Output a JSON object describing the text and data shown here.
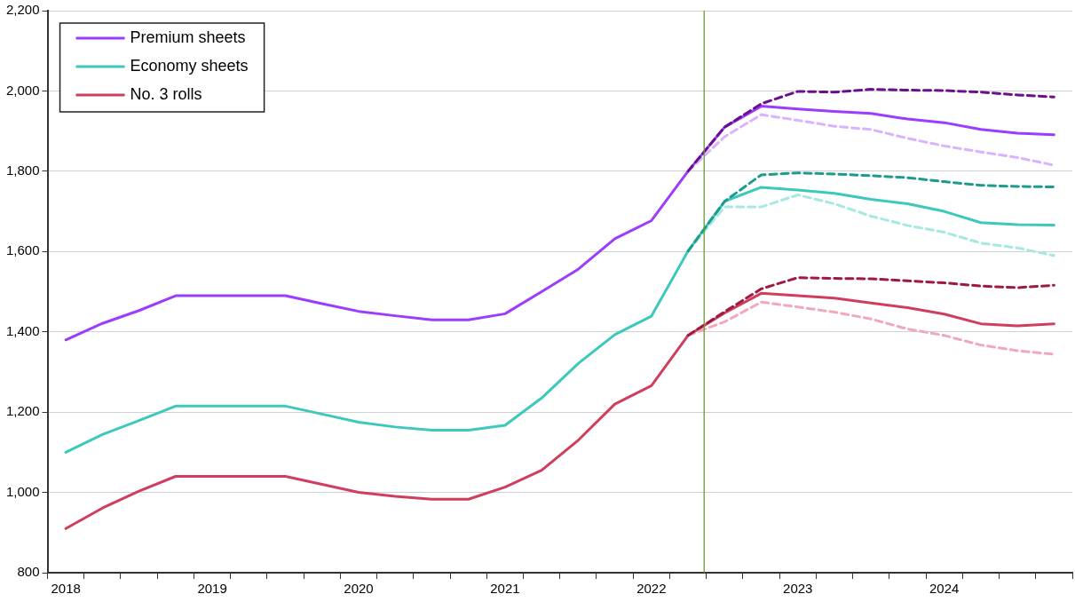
{
  "chart_data": {
    "type": "line",
    "x": [
      2018,
      2018.25,
      2018.5,
      2018.75,
      2019,
      2019.25,
      2019.5,
      2019.75,
      2020,
      2020.25,
      2020.5,
      2020.75,
      2021,
      2021.25,
      2021.5,
      2021.75,
      2022,
      2022.25,
      2022.5,
      2022.75,
      2023,
      2023.25,
      2023.5,
      2023.75,
      2024,
      2024.25,
      2024.5,
      2024.75
    ],
    "series": [
      {
        "name": "Premium sheets",
        "color": "#9b3cff",
        "line_style": "solid",
        "values": [
          1380,
          1421,
          1453,
          1490,
          1490,
          1490,
          1490,
          1470,
          1451,
          1440,
          1430,
          1430,
          1445,
          1500,
          1556,
          1632,
          1677,
          1800,
          1910,
          1962,
          1955,
          1949,
          1944,
          1930,
          1921,
          1904,
          1895,
          1891
        ]
      },
      {
        "name": "Economy sheets",
        "color": "#3cc9bc",
        "line_style": "solid",
        "values": [
          1100,
          1144,
          1179,
          1215,
          1215,
          1215,
          1215,
          1195,
          1175,
          1163,
          1155,
          1155,
          1167,
          1235,
          1321,
          1393,
          1439,
          1601,
          1725,
          1760,
          1753,
          1745,
          1730,
          1719,
          1700,
          1672,
          1667,
          1666
        ]
      },
      {
        "name": "No. 3 rolls",
        "color": "#d03e5e",
        "line_style": "solid",
        "values": [
          910,
          961,
          1003,
          1040,
          1040,
          1040,
          1040,
          1020,
          1000,
          990,
          983,
          983,
          1013,
          1055,
          1130,
          1220,
          1266,
          1391,
          1447,
          1496,
          1490,
          1484,
          1472,
          1460,
          1444,
          1420,
          1415,
          1420
        ]
      },
      {
        "color": "#6a0f8e",
        "line_style": "dashed",
        "values": [
          null,
          null,
          null,
          null,
          null,
          null,
          null,
          null,
          null,
          null,
          null,
          null,
          null,
          null,
          null,
          null,
          null,
          1800,
          1910,
          1968,
          1999,
          1997,
          2004,
          2002,
          2001,
          1997,
          1990,
          1985
        ]
      },
      {
        "color": "#d9b3ff",
        "line_style": "dashed",
        "values": [
          null,
          null,
          null,
          null,
          null,
          null,
          null,
          null,
          null,
          null,
          null,
          null,
          null,
          null,
          null,
          null,
          null,
          1800,
          1886,
          1941,
          1927,
          1912,
          1904,
          1882,
          1863,
          1848,
          1834,
          1815
        ]
      },
      {
        "color": "#1f9a8e",
        "line_style": "dashed",
        "values": [
          null,
          null,
          null,
          null,
          null,
          null,
          null,
          null,
          null,
          null,
          null,
          null,
          null,
          null,
          null,
          null,
          null,
          1601,
          1725,
          1791,
          1796,
          1793,
          1789,
          1784,
          1774,
          1765,
          1762,
          1761
        ]
      },
      {
        "color": "#a6e8e2",
        "line_style": "dashed",
        "values": [
          null,
          null,
          null,
          null,
          null,
          null,
          null,
          null,
          null,
          null,
          null,
          null,
          null,
          null,
          null,
          null,
          null,
          1601,
          1711,
          1711,
          1741,
          1719,
          1688,
          1665,
          1648,
          1621,
          1609,
          1590
        ]
      },
      {
        "color": "#a0193e",
        "line_style": "dashed",
        "values": [
          null,
          null,
          null,
          null,
          null,
          null,
          null,
          null,
          null,
          null,
          null,
          null,
          null,
          null,
          null,
          null,
          null,
          1391,
          1450,
          1507,
          1535,
          1533,
          1532,
          1527,
          1522,
          1514,
          1510,
          1516
        ]
      },
      {
        "color": "#f0a8bc",
        "line_style": "dashed",
        "values": [
          null,
          null,
          null,
          null,
          null,
          null,
          null,
          null,
          null,
          null,
          null,
          null,
          null,
          null,
          null,
          null,
          null,
          1391,
          1425,
          1474,
          1462,
          1449,
          1432,
          1407,
          1391,
          1367,
          1353,
          1344
        ]
      }
    ],
    "xlim": [
      2017.875,
      2024.875
    ],
    "xticks": [
      {
        "value": 2017.875,
        "label": null
      },
      2018,
      {
        "value": 2018.125,
        "label": null
      },
      {
        "value": 2018.375,
        "label": null
      },
      {
        "value": 2018.625,
        "label": null
      },
      {
        "value": 2018.875,
        "label": null
      },
      2019,
      {
        "value": 2019.125,
        "label": null
      },
      {
        "value": 2019.375,
        "label": null
      },
      {
        "value": 2019.625,
        "label": null
      },
      {
        "value": 2019.875,
        "label": null
      },
      2020,
      {
        "value": 2020.125,
        "label": null
      },
      {
        "value": 2020.375,
        "label": null
      },
      {
        "value": 2020.625,
        "label": null
      },
      {
        "value": 2020.875,
        "label": null
      },
      2021,
      {
        "value": 2021.125,
        "label": null
      },
      {
        "value": 2021.375,
        "label": null
      },
      {
        "value": 2021.625,
        "label": null
      },
      {
        "value": 2021.875,
        "label": null
      },
      2022,
      {
        "value": 2022.125,
        "label": null
      },
      {
        "value": 2022.375,
        "label": null
      },
      {
        "value": 2022.625,
        "label": null
      },
      {
        "value": 2022.875,
        "label": null
      },
      2023,
      {
        "value": 2023.125,
        "label": null
      },
      {
        "value": 2023.375,
        "label": null
      },
      {
        "value": 2023.625,
        "label": null
      },
      {
        "value": 2023.875,
        "label": null
      },
      2024,
      {
        "value": 2024.125,
        "label": null
      },
      {
        "value": 2024.375,
        "label": null
      },
      {
        "value": 2024.625,
        "label": null
      },
      {
        "value": 2024.875,
        "label": null
      }
    ],
    "ylim": [
      800,
      2200
    ],
    "yticks": [
      800,
      {
        "value": 1000,
        "label": "1,000"
      },
      {
        "value": 1200,
        "label": "1,200"
      },
      {
        "value": 1400,
        "label": "1,400"
      },
      {
        "value": 1600,
        "label": "1,600"
      },
      {
        "value": 1800,
        "label": "1,800"
      },
      {
        "value": 2000,
        "label": "2,000"
      },
      {
        "value": 2200,
        "label": "2,200"
      }
    ],
    "grid": "y",
    "legend": "top left",
    "ref_lines": [
      {
        "axis": "x",
        "value": 2022.36,
        "color": "#6b9a3a"
      }
    ]
  }
}
